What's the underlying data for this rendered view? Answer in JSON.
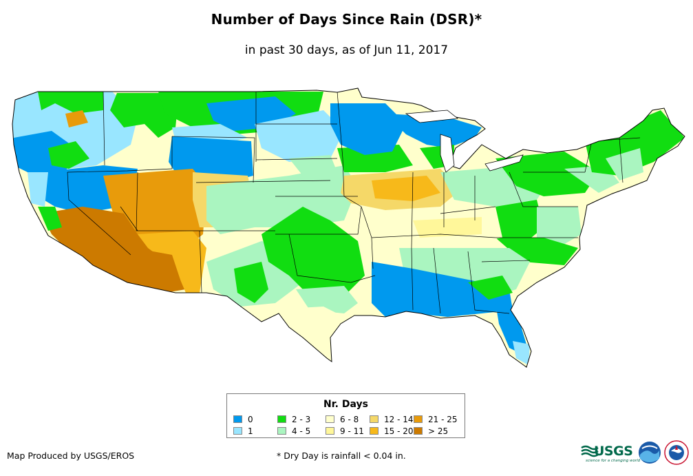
{
  "title": "Number of Days Since Rain (DSR)*",
  "subtitle": "in past 30 days, as of Jun 11, 2017",
  "legend": {
    "title": "Nr. Days",
    "items": [
      {
        "label": "0",
        "color": "#0099ee"
      },
      {
        "label": "1",
        "color": "#99e6ff"
      },
      {
        "label": "2 - 3",
        "color": "#11dd11"
      },
      {
        "label": "4 - 5",
        "color": "#aaf5c0"
      },
      {
        "label": "6 - 8",
        "color": "#ffffcc"
      },
      {
        "label": "9 - 11",
        "color": "#fff79a"
      },
      {
        "label": "12 - 14",
        "color": "#f5d868"
      },
      {
        "label": "15 - 20",
        "color": "#f7b91a"
      },
      {
        "label": "21 - 25",
        "color": "#e89b0b"
      },
      {
        "label": "> 25",
        "color": "#cc7a00"
      }
    ]
  },
  "credit": "Map Produced by USGS/EROS",
  "footnote": "* Dry Day is rainfall < 0.04 in.",
  "logos": {
    "usgs": "USGS",
    "usgs_tagline": "science for a changing world",
    "noaa": "noaa-logo",
    "nws": "nws-logo"
  }
}
